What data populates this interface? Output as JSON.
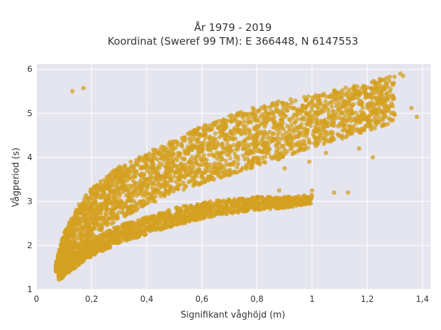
{
  "chart_data": {
    "type": "scatter",
    "title_lines": [
      "År 1979 - 2019",
      "Koordinat (Sweref 99 TM): E 366448, N 6147553"
    ],
    "xlabel": "Signifikant våghöjd (m)",
    "ylabel": "Vågperiod (s)",
    "xlim": [
      0,
      1.43
    ],
    "ylim": [
      1,
      6.12
    ],
    "x_ticks": [
      0,
      0.2,
      0.4,
      0.6,
      0.8,
      1,
      1.2,
      1.4
    ],
    "x_tick_labels": [
      "0",
      "0,2",
      "0,4",
      "0,6",
      "0,8",
      "1",
      "1,2",
      "1,4"
    ],
    "y_ticks": [
      1,
      2,
      3,
      4,
      5,
      6
    ],
    "y_tick_labels": [
      "1",
      "2",
      "3",
      "4",
      "5",
      "6"
    ],
    "grid": true,
    "marker_color": "#d4a020",
    "plot_background": "#e5e5ef",
    "upper_band": {
      "x": [
        0.07,
        0.1,
        0.15,
        0.2,
        0.3,
        0.4,
        0.5,
        0.6,
        0.7,
        0.8,
        0.9,
        1.0,
        1.1,
        1.2,
        1.3
      ],
      "low": [
        1.4,
        1.5,
        1.9,
        2.2,
        2.6,
        2.9,
        3.2,
        3.4,
        3.6,
        3.8,
        4.0,
        4.2,
        4.4,
        4.6,
        4.8
      ],
      "high": [
        1.6,
        2.3,
        2.9,
        3.3,
        3.8,
        4.1,
        4.4,
        4.7,
        4.95,
        5.15,
        5.3,
        5.4,
        5.55,
        5.7,
        5.9
      ]
    },
    "lower_band": {
      "x": [
        0.08,
        0.12,
        0.2,
        0.3,
        0.4,
        0.5,
        0.6,
        0.7,
        0.8,
        0.9,
        1.0
      ],
      "low": [
        1.2,
        1.4,
        1.75,
        2.05,
        2.25,
        2.45,
        2.6,
        2.72,
        2.8,
        2.85,
        2.95
      ],
      "high": [
        1.5,
        1.75,
        2.15,
        2.45,
        2.65,
        2.85,
        2.98,
        3.05,
        3.1,
        3.1,
        3.15
      ]
    },
    "outliers": [
      {
        "x": 0.13,
        "y": 5.5
      },
      {
        "x": 0.17,
        "y": 5.57
      },
      {
        "x": 1.22,
        "y": 4.0
      },
      {
        "x": 1.17,
        "y": 4.2
      },
      {
        "x": 1.08,
        "y": 3.2
      },
      {
        "x": 1.13,
        "y": 3.2
      },
      {
        "x": 1.0,
        "y": 3.25
      },
      {
        "x": 1.38,
        "y": 4.92
      },
      {
        "x": 1.36,
        "y": 5.12
      },
      {
        "x": 1.32,
        "y": 5.9
      },
      {
        "x": 1.33,
        "y": 5.85
      },
      {
        "x": 1.27,
        "y": 5.8
      },
      {
        "x": 1.2,
        "y": 5.4
      },
      {
        "x": 1.25,
        "y": 5.3
      },
      {
        "x": 1.15,
        "y": 4.7
      },
      {
        "x": 1.05,
        "y": 4.1
      },
      {
        "x": 0.99,
        "y": 3.9
      },
      {
        "x": 0.9,
        "y": 3.75
      },
      {
        "x": 0.88,
        "y": 3.25
      },
      {
        "x": 0.95,
        "y": 3.0
      }
    ]
  }
}
